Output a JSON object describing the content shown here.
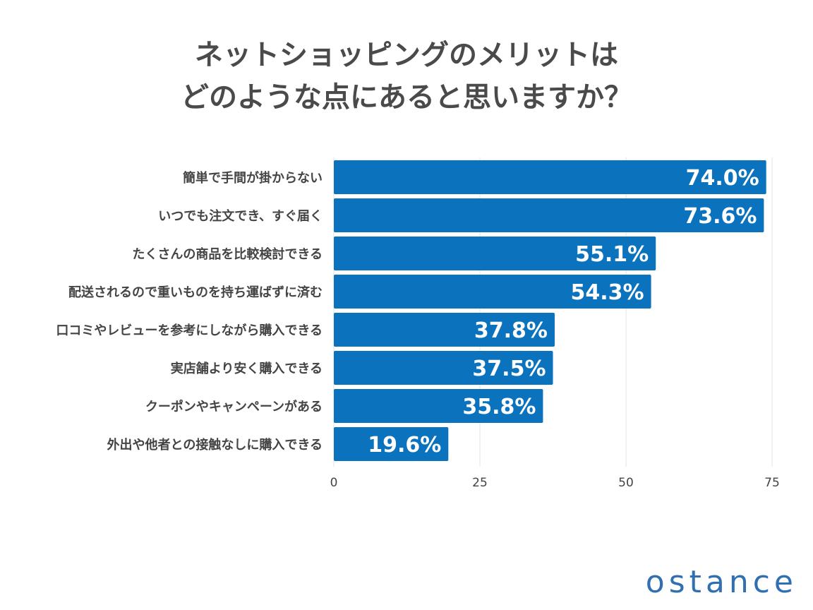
{
  "title": {
    "line1": "ネットショッピングのメリットは",
    "line2": "どのような点にあると思いますか？"
  },
  "chart_data": {
    "type": "bar",
    "orientation": "horizontal",
    "categories": [
      "簡単で手間が掛からない",
      "いつでも注文でき、すぐ届く",
      "たくさんの商品を比較検討できる",
      "配送されるので重いものを持ち運ばずに済む",
      "口コミやレビューを参考にしながら購入できる",
      "実店舗より安く購入できる",
      "クーポンやキャンペーンがある",
      "外出や他者との接触なしに購入できる"
    ],
    "values": [
      74.0,
      73.6,
      55.1,
      54.3,
      37.8,
      37.5,
      35.8,
      19.6
    ],
    "value_labels": [
      "74.0%",
      "73.6%",
      "55.1%",
      "54.3%",
      "37.8%",
      "37.5%",
      "35.8%",
      "19.6%"
    ],
    "x_ticks": [
      0,
      25,
      50,
      75
    ],
    "xlim": [
      0,
      75
    ],
    "grid": true,
    "bar_color": "#0b72bd",
    "grid_color": "#e3e3e3"
  },
  "logo": {
    "text": "ostance",
    "color": "#2f6fb2"
  }
}
